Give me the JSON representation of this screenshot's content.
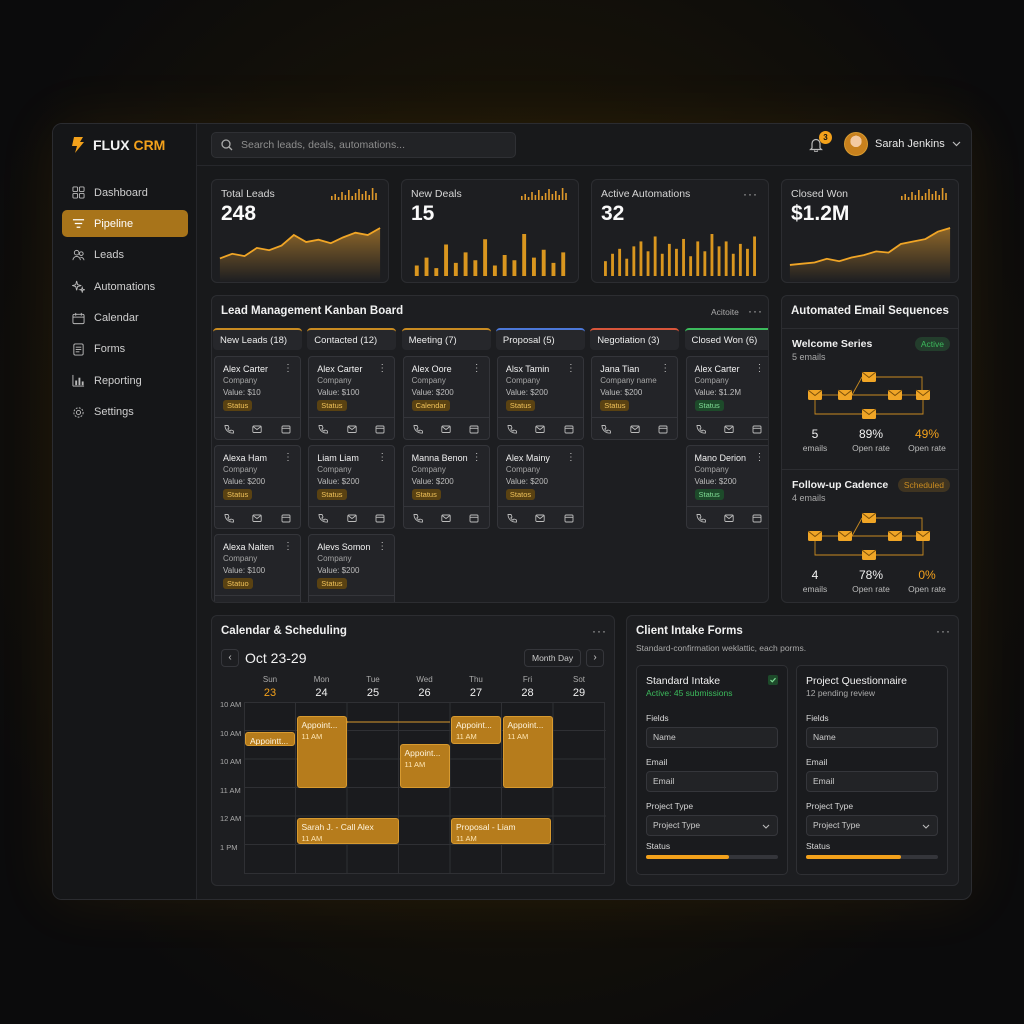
{
  "app": {
    "brand_first": "FLUX",
    "brand_second": "CRM"
  },
  "sidebar": {
    "items": [
      {
        "label": "Dashboard",
        "icon": "dashboard-icon"
      },
      {
        "label": "Pipeline",
        "icon": "pipeline-icon",
        "active": true
      },
      {
        "label": "Leads",
        "icon": "users-icon"
      },
      {
        "label": "Automations",
        "icon": "sparkle-icon"
      },
      {
        "label": "Calendar",
        "icon": "calendar-icon"
      },
      {
        "label": "Forms",
        "icon": "form-icon"
      },
      {
        "label": "Reporting",
        "icon": "bar-chart-icon"
      },
      {
        "label": "Settings",
        "icon": "gear-icon"
      }
    ]
  },
  "topbar": {
    "search_placeholder": "Search leads, deals, automations...",
    "notification_count": "3",
    "user_name": "Sarah Jenkins"
  },
  "kpis": [
    {
      "label": "Total Leads",
      "value": "248",
      "chart": "area",
      "trend": [
        30,
        38,
        34,
        48,
        44,
        52,
        70,
        58,
        62,
        56,
        66,
        74,
        70,
        82
      ]
    },
    {
      "label": "New Deals",
      "value": "15",
      "chart": "bars",
      "trend": [
        20,
        35,
        15,
        60,
        25,
        45,
        30,
        70,
        20,
        40,
        30,
        80,
        35,
        50,
        25,
        45
      ]
    },
    {
      "label": "Active Automations",
      "value": "32",
      "chart": "bars",
      "trend": [
        30,
        45,
        55,
        35,
        60,
        70,
        50,
        80,
        45,
        65,
        55,
        75,
        40,
        70,
        50,
        85,
        60,
        70,
        45,
        65,
        55,
        80
      ]
    },
    {
      "label": "Closed Won",
      "value": "$1.2M",
      "chart": "area",
      "trend": [
        18,
        20,
        22,
        28,
        24,
        30,
        34,
        40,
        38,
        52,
        56,
        60,
        72,
        78
      ]
    }
  ],
  "kanban": {
    "title": "Lead Management Kanban Board",
    "action": "Acitoite",
    "columns": [
      {
        "title": "New Leads (18)",
        "color": "#c98b21",
        "cards": [
          {
            "name": "Alex Carter",
            "company": "Company",
            "value": "Value: $10",
            "status": "Status"
          },
          {
            "name": "Alexa Ham",
            "company": "Company",
            "value": "Value: $200",
            "status": "Status"
          },
          {
            "name": "Alexa Naiten",
            "company": "Company",
            "value": "Value: $100",
            "status": "Statuo"
          }
        ]
      },
      {
        "title": "Contacted (12)",
        "color": "#c98b21",
        "cards": [
          {
            "name": "Alex Carter",
            "company": "Company",
            "value": "Value: $100",
            "status": "Status"
          },
          {
            "name": "Liam Liam",
            "company": "Company",
            "value": "Value: $200",
            "status": "Status"
          },
          {
            "name": "Alevs Somon",
            "company": "Company",
            "value": "Value: $200",
            "status": "Status"
          }
        ]
      },
      {
        "title": "Meeting (7)",
        "color": "#c98b21",
        "cards": [
          {
            "name": "Alex Oore",
            "company": "Company",
            "value": "Value: $200",
            "status": "Calendar"
          },
          {
            "name": "Manna Benon",
            "company": "Company",
            "value": "Value: $200",
            "status": "Status"
          }
        ]
      },
      {
        "title": "Proposal (5)",
        "color": "#4c78d8",
        "cards": [
          {
            "name": "Alsx Tamin",
            "company": "Company",
            "value": "Value: $200",
            "status": "Status"
          },
          {
            "name": "Alex Mainy",
            "company": "Company",
            "value": "Value: $200",
            "status": "Statos"
          }
        ]
      },
      {
        "title": "Negotiation (3)",
        "color": "#d8553a",
        "cards": [
          {
            "name": "Jana Tian",
            "company": "Company name",
            "value": "Value: $200",
            "status": "Status"
          }
        ]
      },
      {
        "title": "Closed Won (6)",
        "color": "#3cba5c",
        "cards": [
          {
            "name": "Alex Carter",
            "company": "Company",
            "value": "Value: $1.2M",
            "status": "Status"
          },
          {
            "name": "Mano Derion",
            "company": "Company",
            "value": "Value: $200",
            "status": "Status"
          }
        ]
      }
    ]
  },
  "email": {
    "title": "Automated Email Sequences",
    "sequences": [
      {
        "name": "Welcome Series",
        "sub": "5 emails",
        "badge": "Active",
        "badge_color": "#3cba5c",
        "stats": [
          {
            "n": "5",
            "l": "emails"
          },
          {
            "n": "89%",
            "l": "Open rate"
          },
          {
            "n": "49%",
            "l": "Open rate",
            "gold": true
          }
        ]
      },
      {
        "name": "Follow-up Cadence",
        "sub": "4 emails",
        "badge": "Scheduled",
        "badge_color": "#c98b21",
        "stats": [
          {
            "n": "4",
            "l": "emails"
          },
          {
            "n": "78%",
            "l": "Open rate"
          },
          {
            "n": "0%",
            "l": "Open rate",
            "gold": true
          }
        ]
      }
    ]
  },
  "calendar": {
    "title": "Calendar & Scheduling",
    "range": "Oct 23-29",
    "view": "Month Day",
    "days": [
      {
        "d": "Sun",
        "n": "23"
      },
      {
        "d": "Mon",
        "n": "24"
      },
      {
        "d": "Tue",
        "n": "25"
      },
      {
        "d": "Wed",
        "n": "26"
      },
      {
        "d": "Thu",
        "n": "27"
      },
      {
        "d": "Fri",
        "n": "28"
      },
      {
        "d": "Sot",
        "n": "29"
      }
    ],
    "times": [
      "10 AM",
      "10 AM",
      "10 AM",
      "11 AM",
      "12 AM",
      "1 PM"
    ],
    "events": [
      {
        "title": "Appointt...",
        "time": ""
      },
      {
        "title": "Appoint...",
        "time": "11 AM"
      },
      {
        "title": "Appoint...",
        "time": "11 AM"
      },
      {
        "title": "Appoint...",
        "time": "11 AM"
      },
      {
        "title": "Appoint...",
        "time": "11 AM"
      },
      {
        "title": "Sarah J. - Call Alex",
        "time": "11 AM"
      },
      {
        "title": "Proposal - Liam",
        "time": "11 AM"
      }
    ]
  },
  "forms": {
    "title": "Client Intake Forms",
    "subtitle": "Standard-confirmation weklattic, each porms.",
    "items": [
      {
        "title": "Standard Intake",
        "status": "Active: 45 submissions",
        "status_color": "#3cba5c",
        "fields_label": "Fields",
        "name_label": "Name",
        "email_label": "Email",
        "email_value": "Email",
        "type_label": "Project Type",
        "type_value": "Project Type",
        "status_label": "Status",
        "progress": 0.63
      },
      {
        "title": "Project Questionnaire",
        "status": "12 pending review",
        "status_color": "#aaaaaa",
        "fields_label": "Fields",
        "name_label": "Name",
        "email_label": "Email",
        "email_value": "Email",
        "type_label": "Project Type",
        "type_value": "Project Type",
        "status_label": "Status",
        "progress": 0.72
      }
    ]
  }
}
